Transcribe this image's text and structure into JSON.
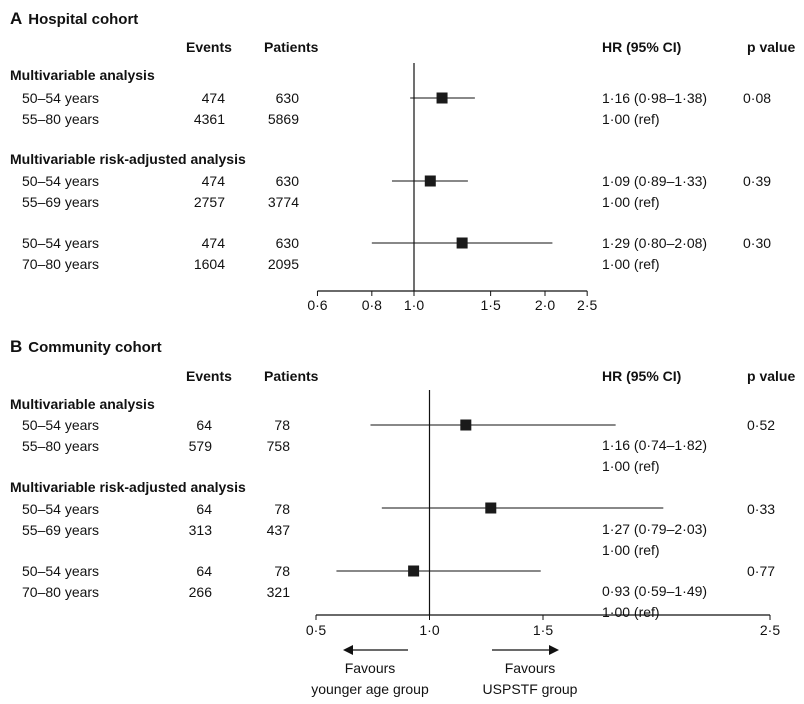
{
  "chart_data": [
    {
      "type": "forest",
      "panel_letter": "A",
      "title": "Hospital cohort",
      "columns": {
        "events": "Events",
        "patients": "Patients",
        "hr": "HR (95% CI)",
        "p": "p value"
      },
      "sections": [
        {
          "label": "Multivariable analysis",
          "rows": [
            {
              "label": "50–54 years",
              "events": "474",
              "patients": "630",
              "hr_text": "1·16 (0·98–1·38)",
              "p": "0·08",
              "hr": 1.16,
              "lo": 0.98,
              "hi": 1.38
            },
            {
              "label": "55–80 years",
              "events": "4361",
              "patients": "5869",
              "hr_text": "1·00 (ref)",
              "p": ""
            }
          ]
        },
        {
          "label": "Multivariable risk-adjusted analysis",
          "rows": [
            {
              "label": "50–54 years",
              "events": "474",
              "patients": "630",
              "hr_text": "1·09 (0·89–1·33)",
              "p": "0·39",
              "hr": 1.09,
              "lo": 0.89,
              "hi": 1.33
            },
            {
              "label": "55–69 years",
              "events": "2757",
              "patients": "3774",
              "hr_text": "1·00 (ref)",
              "p": ""
            },
            {
              "label": "50–54 years",
              "events": "474",
              "patients": "630",
              "hr_text": "1·29 (0·80–2·08)",
              "p": "0·30",
              "hr": 1.29,
              "lo": 0.8,
              "hi": 2.08
            },
            {
              "label": "70–80 years",
              "events": "1604",
              "patients": "2095",
              "hr_text": "1·00 (ref)",
              "p": ""
            }
          ]
        }
      ],
      "x_scale": "log",
      "xlim": [
        0.6,
        2.5
      ],
      "ref_line": 1.0,
      "ticks": [
        0.6,
        0.8,
        1.0,
        1.5,
        2.0,
        2.5
      ],
      "tick_labels": [
        "0·6",
        "0·8",
        "1·0",
        "1·5",
        "2·0",
        "2·5"
      ]
    },
    {
      "type": "forest",
      "panel_letter": "B",
      "title": "Community cohort",
      "columns": {
        "events": "Events",
        "patients": "Patients",
        "hr": "HR (95% CI)",
        "p": "p value"
      },
      "sections": [
        {
          "label": "Multivariable analysis",
          "rows": [
            {
              "label": "50–54 years",
              "events": "64",
              "patients": "78",
              "hr": 1.16,
              "lo": 0.74,
              "hi": 1.82
            },
            {
              "label": "55–80 years",
              "events": "579",
              "patients": "758"
            }
          ],
          "hr_text": [
            "1·16 (0·74–1·82)",
            "1·00 (ref)"
          ],
          "p": "0·52"
        },
        {
          "label": "Multivariable risk-adjusted analysis",
          "rows": [
            {
              "label": "50–54 years",
              "events": "64",
              "patients": "78",
              "hr": 1.27,
              "lo": 0.79,
              "hi": 2.03
            },
            {
              "label": "55–69 years",
              "events": "313",
              "patients": "437"
            }
          ],
          "hr_text": [
            "1·27 (0·79–2·03)",
            "1·00 (ref)"
          ],
          "p": "0·33"
        },
        {
          "label": "",
          "rows": [
            {
              "label": "50–54 years",
              "events": "64",
              "patients": "78",
              "hr": 0.93,
              "lo": 0.59,
              "hi": 1.49
            },
            {
              "label": "70–80 years",
              "events": "266",
              "patients": "321"
            }
          ],
          "hr_text": [
            "0·93 (0·59–1·49)",
            "1·00 (ref)"
          ],
          "p": "0·77"
        }
      ],
      "x_scale": "linear",
      "xlim": [
        0.5,
        2.5
      ],
      "ref_line": 1.0,
      "ticks": [
        0.5,
        1.0,
        1.5,
        2.5
      ],
      "tick_labels": [
        "0·5",
        "1·0",
        "1·5",
        "2·5"
      ],
      "favours_left": [
        "Favours",
        "younger age group"
      ],
      "favours_right": [
        "Favours",
        "USPSTF group"
      ]
    }
  ]
}
